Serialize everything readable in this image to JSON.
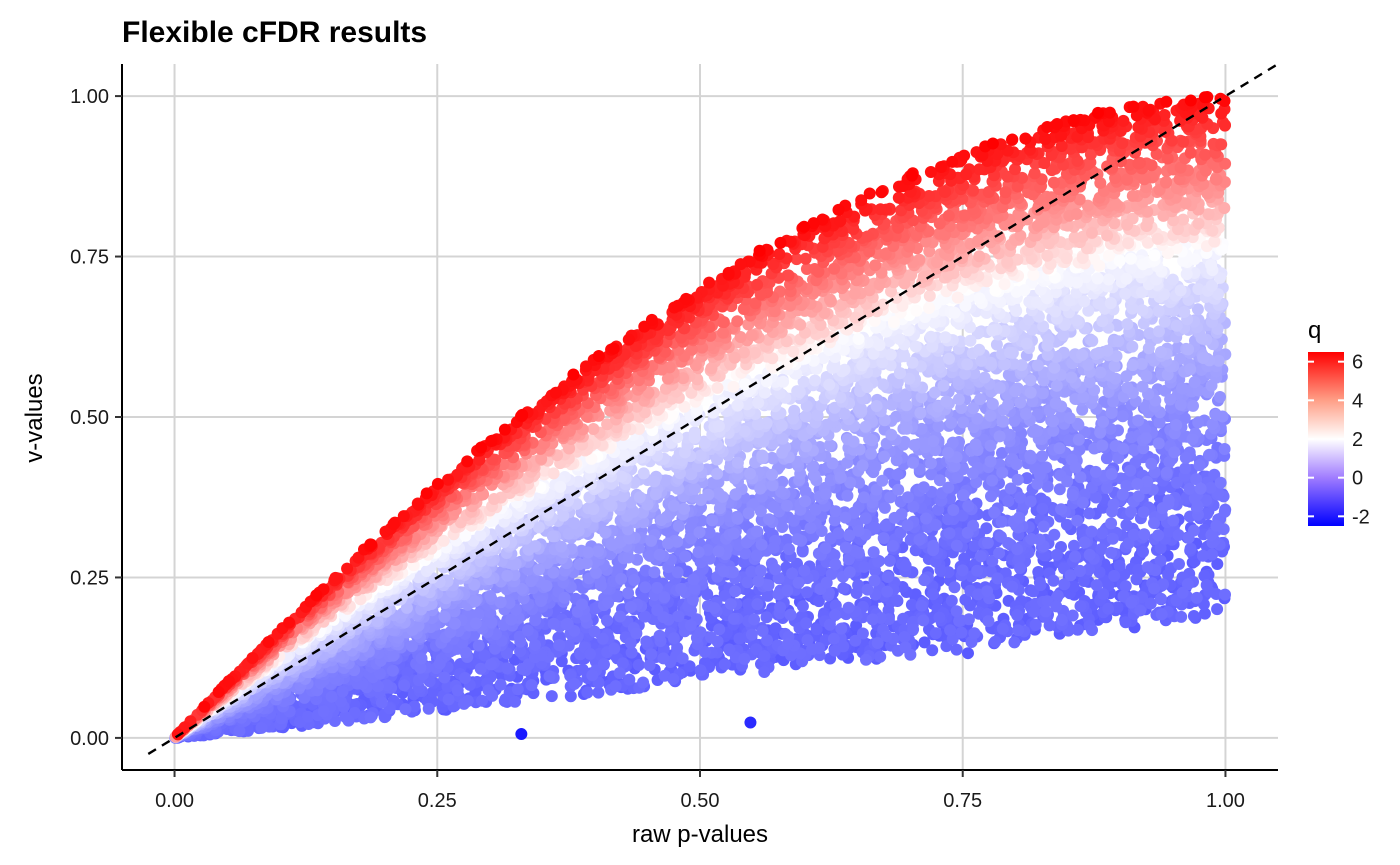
{
  "chart_data": {
    "type": "scatter",
    "title": "Flexible cFDR results",
    "xlabel": "raw p-values",
    "ylabel": "v-values",
    "xlim": [
      -0.05,
      1.05
    ],
    "ylim": [
      -0.05,
      1.05
    ],
    "x_ticks": [
      0.0,
      0.25,
      0.5,
      0.75,
      1.0
    ],
    "x_tick_labels": [
      "0.00",
      "0.25",
      "0.50",
      "0.75",
      "1.00"
    ],
    "y_ticks": [
      0.0,
      0.25,
      0.5,
      0.75,
      1.0
    ],
    "y_tick_labels": [
      "0.00",
      "0.25",
      "0.50",
      "0.75",
      "1.00"
    ],
    "grid": true,
    "reference_line": {
      "type": "y=x",
      "style": "dashed",
      "color": "#000000"
    },
    "color_scale": {
      "variable": "q",
      "title": "q",
      "min": -2.5,
      "max": 6.5,
      "ticks": [
        6,
        4,
        2,
        0,
        -2
      ],
      "tick_labels": [
        "6",
        "4",
        "2",
        "0",
        "-2"
      ],
      "low_color": "#0000ff",
      "mid_color": "#ffffff",
      "high_color": "#ff0000",
      "midpoint": 2
    },
    "point_cloud": {
      "description_of_bounds": "points fill region between lower curve v = 0.19*p^1.1 and upper curve v = 1-(1-p)^1.75; color increases toward upper curve",
      "n_points_approx": 9000
    },
    "outlier_points": [
      {
        "x": 0.33,
        "y": 0.006,
        "q": -2.3
      },
      {
        "x": 0.548,
        "y": 0.024,
        "q": -2.1
      },
      {
        "x": 0.755,
        "y": 0.132,
        "q": -1.4
      },
      {
        "x": 0.97,
        "y": 0.19,
        "q": -1.2
      }
    ],
    "legend_position": "right"
  }
}
